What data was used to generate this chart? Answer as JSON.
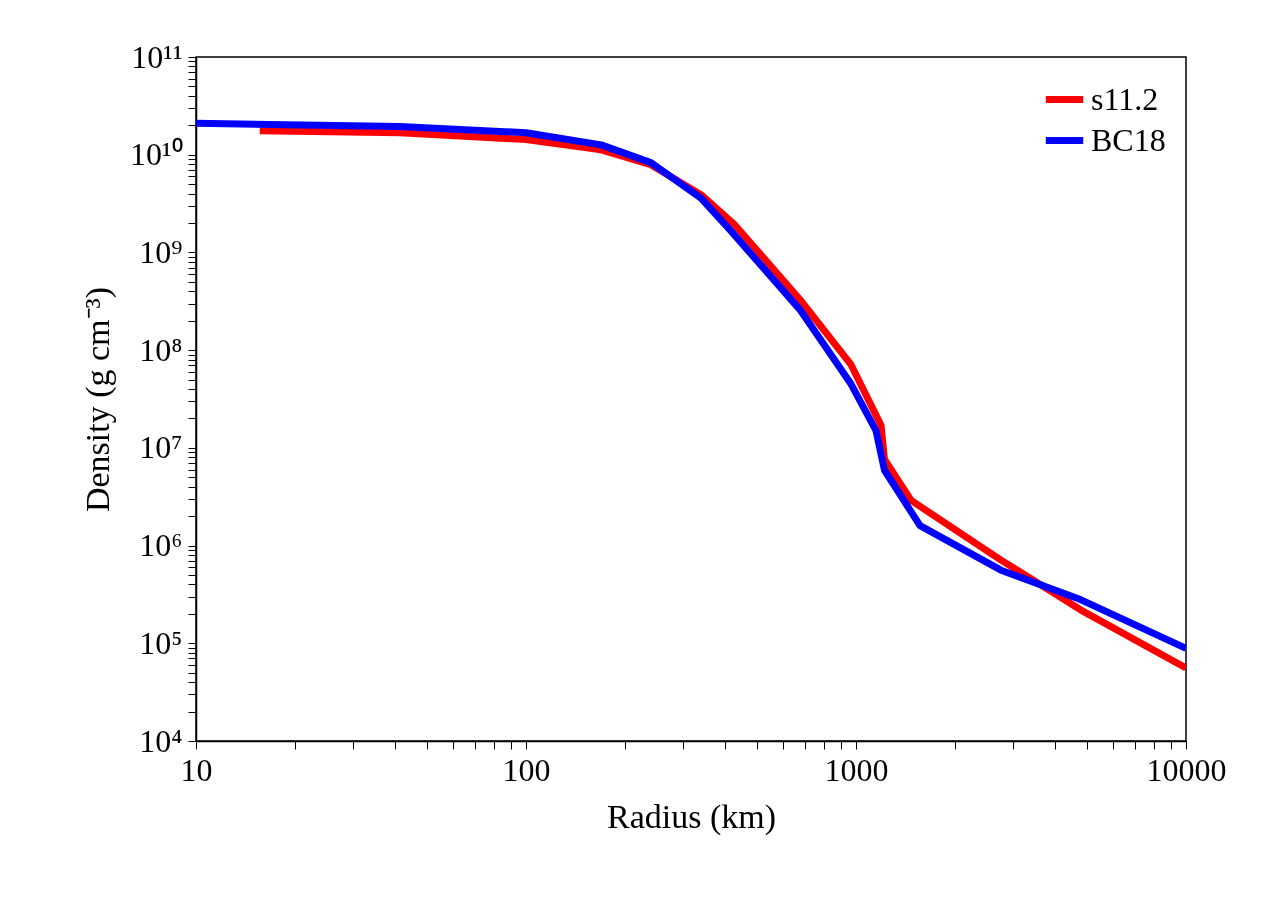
{
  "chart_data": {
    "type": "line",
    "xlabel": "Radius (km)",
    "ylabel": "Density (g cm⁻³)",
    "log": "xy",
    "grid": false,
    "legend": "top right",
    "line_style": "solid",
    "marker": "none",
    "xlim": [
      10,
      10000
    ],
    "ylim": [
      10000,
      100000000000
    ],
    "xticks": [
      10,
      {
        "value": 20,
        "label": null
      },
      {
        "value": 30,
        "label": null
      },
      {
        "value": 40,
        "label": null
      },
      {
        "value": 50,
        "label": null
      },
      {
        "value": 60,
        "label": null
      },
      {
        "value": 70,
        "label": null
      },
      {
        "value": 80,
        "label": null
      },
      {
        "value": 90,
        "label": null
      },
      100,
      {
        "value": 200,
        "label": null
      },
      {
        "value": 300,
        "label": null
      },
      {
        "value": 400,
        "label": null
      },
      {
        "value": 500,
        "label": null
      },
      {
        "value": 600,
        "label": null
      },
      {
        "value": 700,
        "label": null
      },
      {
        "value": 800,
        "label": null
      },
      {
        "value": 900,
        "label": null
      },
      1000,
      {
        "value": 2000,
        "label": null
      },
      {
        "value": 3000,
        "label": null
      },
      {
        "value": 4000,
        "label": null
      },
      {
        "value": 5000,
        "label": null
      },
      {
        "value": 6000,
        "label": null
      },
      {
        "value": 7000,
        "label": null
      },
      {
        "value": 8000,
        "label": null
      },
      {
        "value": 9000,
        "label": null
      },
      10000
    ],
    "yticks": [
      {
        "value": 10000.0,
        "label": "10⁴"
      },
      {
        "value": 20000.0,
        "label": null
      },
      {
        "value": 30000.0,
        "label": null
      },
      {
        "value": 40000.0,
        "label": null
      },
      {
        "value": 50000.0,
        "label": null
      },
      {
        "value": 60000.0,
        "label": null
      },
      {
        "value": 70000.0,
        "label": null
      },
      {
        "value": 80000.0,
        "label": null
      },
      {
        "value": 90000.0,
        "label": null
      },
      {
        "value": 100000.0,
        "label": "10⁵"
      },
      {
        "value": 200000.0,
        "label": null
      },
      {
        "value": 300000.0,
        "label": null
      },
      {
        "value": 400000.0,
        "label": null
      },
      {
        "value": 500000.0,
        "label": null
      },
      {
        "value": 600000.0,
        "label": null
      },
      {
        "value": 700000.0,
        "label": null
      },
      {
        "value": 800000.0,
        "label": null
      },
      {
        "value": 900000.0,
        "label": null
      },
      {
        "value": 1000000.0,
        "label": "10⁶"
      },
      {
        "value": 2000000.0,
        "label": null
      },
      {
        "value": 3000000.0,
        "label": null
      },
      {
        "value": 4000000.0,
        "label": null
      },
      {
        "value": 5000000.0,
        "label": null
      },
      {
        "value": 6000000.0,
        "label": null
      },
      {
        "value": 7000000.0,
        "label": null
      },
      {
        "value": 8000000.0,
        "label": null
      },
      {
        "value": 9000000.0,
        "label": null
      },
      {
        "value": 10000000.0,
        "label": "10⁷"
      },
      {
        "value": 20000000.0,
        "label": null
      },
      {
        "value": 30000000.0,
        "label": null
      },
      {
        "value": 40000000.0,
        "label": null
      },
      {
        "value": 50000000.0,
        "label": null
      },
      {
        "value": 60000000.0,
        "label": null
      },
      {
        "value": 70000000.0,
        "label": null
      },
      {
        "value": 80000000.0,
        "label": null
      },
      {
        "value": 90000000.0,
        "label": null
      },
      {
        "value": 100000000.0,
        "label": "10⁸"
      },
      {
        "value": 200000000.0,
        "label": null
      },
      {
        "value": 300000000.0,
        "label": null
      },
      {
        "value": 400000000.0,
        "label": null
      },
      {
        "value": 500000000.0,
        "label": null
      },
      {
        "value": 600000000.0,
        "label": null
      },
      {
        "value": 700000000.0,
        "label": null
      },
      {
        "value": 800000000.0,
        "label": null
      },
      {
        "value": 900000000.0,
        "label": null
      },
      {
        "value": 1000000000.0,
        "label": "10⁹"
      },
      {
        "value": 2000000000.0,
        "label": null
      },
      {
        "value": 3000000000.0,
        "label": null
      },
      {
        "value": 4000000000.0,
        "label": null
      },
      {
        "value": 5000000000.0,
        "label": null
      },
      {
        "value": 6000000000.0,
        "label": null
      },
      {
        "value": 7000000000.0,
        "label": null
      },
      {
        "value": 8000000000.0,
        "label": null
      },
      {
        "value": 9000000000.0,
        "label": null
      },
      {
        "value": 10000000000.0,
        "label": "10¹⁰"
      },
      {
        "value": 20000000000.0,
        "label": null
      },
      {
        "value": 30000000000.0,
        "label": null
      },
      {
        "value": 40000000000.0,
        "label": null
      },
      {
        "value": 50000000000.0,
        "label": null
      },
      {
        "value": 60000000000.0,
        "label": null
      },
      {
        "value": 70000000000.0,
        "label": null
      },
      {
        "value": 80000000000.0,
        "label": null
      },
      {
        "value": 90000000000.0,
        "label": null
      },
      {
        "value": 100000000000.0,
        "label": "10¹¹"
      }
    ],
    "series": [
      {
        "name": "s11.2",
        "color": "#ff0000",
        "x": [
          15.6,
          41.5,
          100,
          169,
          239,
          339,
          430,
          676,
          966,
          1191,
          1220,
          1469,
          2750,
          4790,
          10000
        ],
        "values": [
          17600000000.0,
          16800000000.0,
          14300000000.0,
          11200000000.0,
          7900000000.0,
          3900000000.0,
          1900000000.0,
          330000000.0,
          71000000.0,
          17000000.0,
          7600000.0,
          2900000.0,
          710000.0,
          220000.0,
          56000.0
        ]
      },
      {
        "name": "BC18",
        "color": "#0000ff",
        "x": [
          10,
          41.5,
          100,
          169,
          239,
          339,
          415,
          676,
          966,
          1150,
          1220,
          1563,
          2750,
          4790,
          10000
        ],
        "values": [
          21000000000.0,
          19400000000.0,
          16800000000.0,
          12600000000.0,
          8300000000.0,
          3600000000.0,
          1700000000.0,
          260000000.0,
          45000000.0,
          15000000.0,
          5900000.0,
          1600000.0,
          560000.0,
          280000.0,
          89000.0
        ]
      }
    ]
  }
}
